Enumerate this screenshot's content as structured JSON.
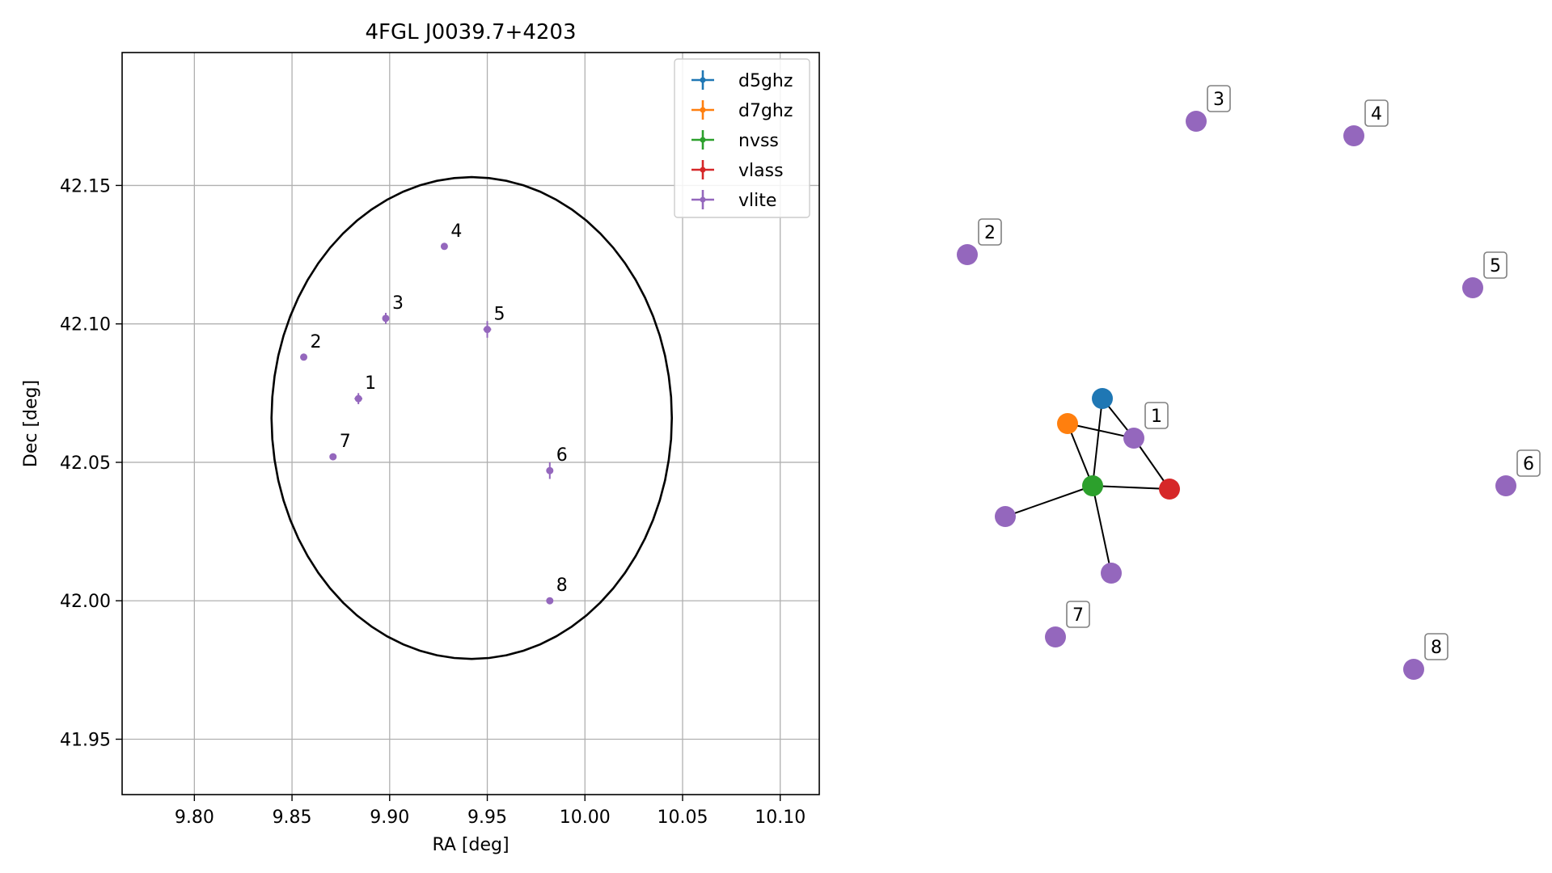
{
  "chart_data": [
    {
      "type": "scatter",
      "title": "4FGL J0039.7+4203",
      "xlabel": "RA [deg]",
      "ylabel": "Dec [deg]",
      "xlim": [
        9.763,
        10.12
      ],
      "ylim": [
        41.93,
        42.198
      ],
      "x_ticks": [
        9.8,
        9.85,
        9.9,
        9.95,
        10.0,
        10.05,
        10.1
      ],
      "x_tick_labels": [
        "9.80",
        "9.85",
        "9.90",
        "9.95",
        "10.00",
        "10.05",
        "10.10"
      ],
      "y_ticks": [
        41.95,
        42.0,
        42.05,
        42.1,
        42.15
      ],
      "y_tick_labels": [
        "41.95",
        "42.00",
        "42.05",
        "42.10",
        "42.15"
      ],
      "grid": true,
      "legend_position": "top-right",
      "legend": [
        {
          "name": "d5ghz",
          "color": "#1f77b4"
        },
        {
          "name": "d7ghz",
          "color": "#ff7f0e"
        },
        {
          "name": "nvss",
          "color": "#2ca02c"
        },
        {
          "name": "vlass",
          "color": "#d62728"
        },
        {
          "name": "vlite",
          "color": "#9467bd"
        }
      ],
      "ellipse": {
        "ra_center": 9.942,
        "dec_center": 42.066,
        "ra_semi_axis": 0.1025,
        "dec_semi_axis": 0.087
      },
      "points": [
        {
          "label": "1",
          "ra": 9.884,
          "dec": 42.073,
          "ra_err": 0.002,
          "dec_err": 0.002
        },
        {
          "label": "2",
          "ra": 9.856,
          "dec": 42.088,
          "ra_err": 0.001,
          "dec_err": 0.001
        },
        {
          "label": "3",
          "ra": 9.898,
          "dec": 42.102,
          "ra_err": 0.001,
          "dec_err": 0.002
        },
        {
          "label": "4",
          "ra": 9.928,
          "dec": 42.128,
          "ra_err": 0.001,
          "dec_err": 0.001
        },
        {
          "label": "5",
          "ra": 9.95,
          "dec": 42.098,
          "ra_err": 0.002,
          "dec_err": 0.003
        },
        {
          "label": "6",
          "ra": 9.982,
          "dec": 42.047,
          "ra_err": 0.001,
          "dec_err": 0.003
        },
        {
          "label": "7",
          "ra": 9.871,
          "dec": 42.052,
          "ra_err": 0.001,
          "dec_err": 0.001
        },
        {
          "label": "8",
          "ra": 9.982,
          "dec": 42.0,
          "ra_err": 0.001,
          "dec_err": 0.001
        }
      ]
    },
    {
      "type": "graph",
      "nodes": [
        {
          "id": "d5ghz",
          "label": "",
          "color": "#1f77b4"
        },
        {
          "id": "d7ghz",
          "label": "",
          "color": "#ff7f0e"
        },
        {
          "id": "nvss",
          "label": "",
          "color": "#2ca02c"
        },
        {
          "id": "vlass",
          "label": "",
          "color": "#d62728"
        },
        {
          "id": "v1",
          "label": "1",
          "color": "#9467bd"
        },
        {
          "id": "va",
          "label": "",
          "color": "#9467bd"
        },
        {
          "id": "vb",
          "label": "",
          "color": "#9467bd"
        },
        {
          "id": "v2",
          "label": "2",
          "color": "#9467bd"
        },
        {
          "id": "v3",
          "label": "3",
          "color": "#9467bd"
        },
        {
          "id": "v4",
          "label": "4",
          "color": "#9467bd"
        },
        {
          "id": "v5",
          "label": "5",
          "color": "#9467bd"
        },
        {
          "id": "v6",
          "label": "6",
          "color": "#9467bd"
        },
        {
          "id": "v7",
          "label": "7",
          "color": "#9467bd"
        },
        {
          "id": "v8",
          "label": "8",
          "color": "#9467bd"
        }
      ],
      "edges": [
        [
          "d5ghz",
          "v1"
        ],
        [
          "d5ghz",
          "nvss"
        ],
        [
          "d7ghz",
          "v1"
        ],
        [
          "d7ghz",
          "nvss"
        ],
        [
          "v1",
          "vlass"
        ],
        [
          "nvss",
          "vlass"
        ],
        [
          "nvss",
          "va"
        ],
        [
          "nvss",
          "vb"
        ]
      ]
    }
  ]
}
